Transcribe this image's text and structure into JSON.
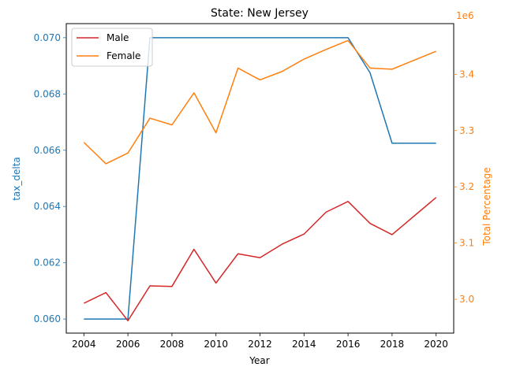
{
  "chart_data": {
    "type": "line",
    "title": "State: New Jersey",
    "xlabel": "Year",
    "ylabel_left": "tax_delta",
    "ylabel_right": "Total Percentage",
    "right_offset_text": "1e6",
    "colors": {
      "left_axis": "#1f77b4",
      "right_axis": "#ff7f0e",
      "male": "#d62728",
      "female": "#ff7f0e",
      "tax_delta": "#1f77b4"
    },
    "x": [
      2004,
      2005,
      2006,
      2007,
      2008,
      2009,
      2010,
      2011,
      2012,
      2013,
      2014,
      2015,
      2016,
      2017,
      2018,
      2019,
      2020
    ],
    "xticks": [
      2004,
      2006,
      2008,
      2010,
      2012,
      2014,
      2016,
      2018,
      2020
    ],
    "xlim": [
      2003.2,
      2020.8
    ],
    "ylim_left": [
      0.0595,
      0.0705
    ],
    "yticks_left": [
      "0.060",
      "0.062",
      "0.064",
      "0.066",
      "0.068",
      "0.070"
    ],
    "ylim_right": [
      2.94,
      3.49
    ],
    "yticks_right": [
      "3.0",
      "3.1",
      "3.2",
      "3.3",
      "3.4"
    ],
    "series_left": {
      "values": [
        0.06,
        0.06,
        0.06,
        0.07,
        0.07,
        0.07,
        0.07,
        0.07,
        0.07,
        0.07,
        0.07,
        0.07,
        0.07,
        0.06875,
        0.06625,
        0.06625,
        0.06625
      ]
    },
    "series": [
      {
        "name": "Male",
        "axis": "right",
        "values": [
          2.993,
          3.012,
          2.962,
          3.024,
          3.023,
          3.089,
          3.029,
          3.081,
          3.074,
          3.098,
          3.116,
          3.155,
          3.174,
          3.135,
          3.115,
          3.148,
          3.181
        ]
      },
      {
        "name": "Female",
        "axis": "right",
        "values": [
          3.279,
          3.241,
          3.26,
          3.322,
          3.31,
          3.367,
          3.296,
          3.411,
          3.39,
          3.405,
          3.427,
          3.444,
          3.46,
          3.411,
          3.409,
          3.425,
          3.441
        ]
      }
    ],
    "legend_position": "upper-left",
    "grid": false
  }
}
